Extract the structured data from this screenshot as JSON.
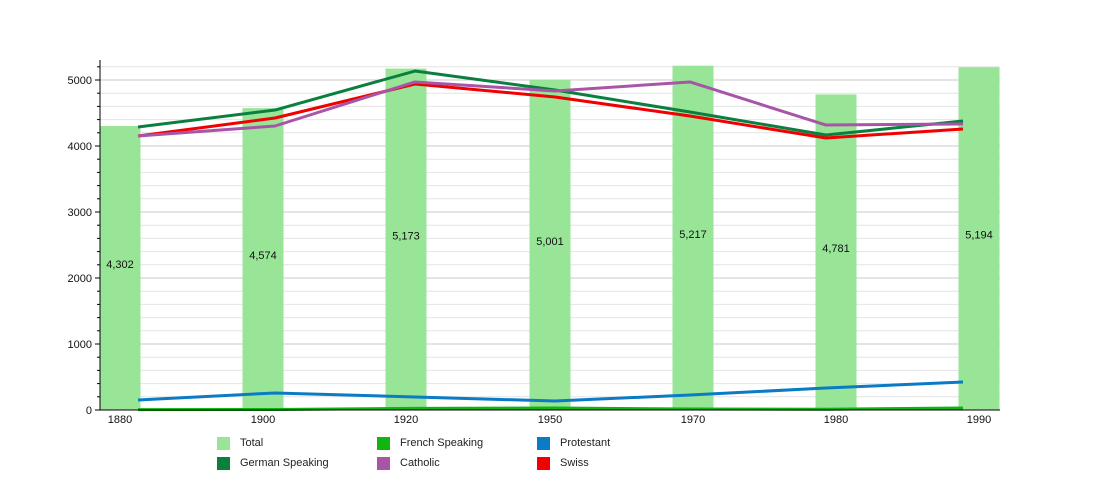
{
  "chart_data": {
    "type": "bar+line",
    "categories": [
      "1880",
      "1900",
      "1920",
      "1950",
      "1970",
      "1980",
      "1990"
    ],
    "ylim": [
      0,
      5300
    ],
    "yticks": [
      0,
      1000,
      2000,
      3000,
      4000,
      5000
    ],
    "grid": true,
    "legend_position": "bottom",
    "bars": {
      "name": "Total",
      "color": "#98e598",
      "values": [
        4302,
        4574,
        5173,
        5001,
        5217,
        4781,
        5194
      ],
      "labels": [
        "4,302",
        "4,574",
        "5,173",
        "5,001",
        "5,217",
        "4,781",
        "5,194"
      ]
    },
    "series": [
      {
        "name": "German Speaking",
        "color": "#0a7f3f",
        "values": [
          4288,
          4545,
          5136,
          4848,
          4515,
          4167,
          4379
        ]
      },
      {
        "name": "French Speaking",
        "color": "#11b511",
        "values": [
          5,
          8,
          25,
          30,
          15,
          12,
          30
        ]
      },
      {
        "name": "Catholic",
        "color": "#a855a8",
        "values": [
          4151,
          4303,
          4970,
          4833,
          4970,
          4318,
          4333
        ]
      },
      {
        "name": "Protestant",
        "color": "#0a7bc4",
        "values": [
          152,
          258,
          197,
          136,
          227,
          333,
          424
        ]
      },
      {
        "name": "Swiss",
        "color": "#f00000",
        "values": [
          4151,
          4424,
          4939,
          4742,
          4454,
          4121,
          4258
        ]
      }
    ]
  },
  "legend": [
    {
      "label": "Total",
      "color": "#98e598"
    },
    {
      "label": "German Speaking",
      "color": "#0a7f3f"
    },
    {
      "label": "French Speaking",
      "color": "#11b511"
    },
    {
      "label": "Catholic",
      "color": "#a855a8"
    },
    {
      "label": "Protestant",
      "color": "#0a7bc4"
    },
    {
      "label": "Swiss",
      "color": "#f00000"
    }
  ]
}
